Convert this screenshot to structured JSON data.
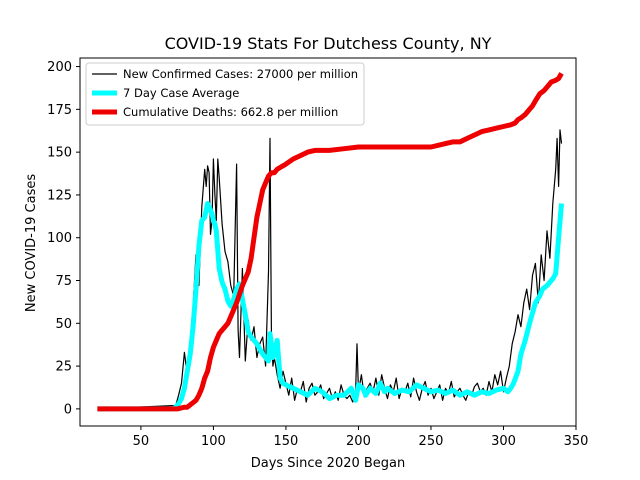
{
  "chart_data": {
    "type": "line",
    "title": "COVID-19 Stats For Dutchess County, NY",
    "xlabel": "Days Since 2020 Began",
    "ylabel": "New COVID-19 Cases",
    "xlim": [
      8,
      350
    ],
    "ylim": [
      -10,
      205
    ],
    "xticks": [
      50,
      100,
      150,
      200,
      250,
      300,
      350
    ],
    "yticks": [
      0,
      25,
      50,
      75,
      100,
      125,
      150,
      175,
      200
    ],
    "grid": false,
    "legend_position": "top-left",
    "series": [
      {
        "name": "New Confirmed Cases: 27000 per million",
        "color": "#000000",
        "x": [
          20,
          74,
          76,
          78,
          80,
          82,
          84,
          86,
          88,
          90,
          92,
          94,
          95,
          96,
          97,
          98,
          99,
          100,
          101,
          102,
          103,
          104,
          106,
          108,
          110,
          112,
          114,
          116,
          117,
          118,
          120,
          122,
          124,
          126,
          128,
          130,
          132,
          134,
          136,
          138,
          139,
          140,
          141,
          142,
          144,
          146,
          148,
          150,
          152,
          154,
          156,
          158,
          160,
          162,
          164,
          166,
          168,
          170,
          172,
          174,
          176,
          178,
          180,
          182,
          184,
          186,
          188,
          190,
          192,
          194,
          196,
          198,
          199,
          200,
          202,
          204,
          206,
          208,
          210,
          212,
          214,
          216,
          218,
          220,
          222,
          224,
          226,
          228,
          230,
          232,
          234,
          236,
          238,
          240,
          242,
          244,
          246,
          248,
          250,
          252,
          254,
          256,
          258,
          260,
          262,
          264,
          266,
          268,
          270,
          272,
          274,
          276,
          278,
          280,
          282,
          284,
          286,
          288,
          290,
          292,
          294,
          296,
          298,
          300,
          302,
          304,
          306,
          308,
          310,
          312,
          314,
          316,
          318,
          320,
          322,
          324,
          326,
          328,
          330,
          332,
          334,
          336,
          337,
          338,
          339,
          340
        ],
        "y": [
          0,
          2,
          8,
          15,
          33,
          20,
          40,
          60,
          90,
          72,
          118,
          140,
          130,
          142,
          138,
          102,
          110,
          146,
          125,
          110,
          146,
          135,
          108,
          92,
          86,
          72,
          66,
          143,
          46,
          30,
          82,
          28,
          52,
          40,
          48,
          30,
          38,
          42,
          25,
          80,
          158,
          45,
          25,
          30,
          20,
          12,
          22,
          15,
          8,
          18,
          5,
          12,
          10,
          16,
          4,
          12,
          15,
          8,
          10,
          14,
          6,
          9,
          12,
          6,
          10,
          5,
          14,
          8,
          6,
          8,
          4,
          10,
          38,
          10,
          20,
          7,
          12,
          15,
          10,
          18,
          8,
          20,
          12,
          6,
          14,
          10,
          18,
          6,
          12,
          10,
          15,
          7,
          18,
          10,
          5,
          12,
          16,
          8,
          12,
          6,
          10,
          14,
          5,
          12,
          9,
          16,
          7,
          10,
          12,
          8,
          5,
          10,
          8,
          13,
          15,
          10,
          12,
          8,
          16,
          10,
          20,
          14,
          22,
          10,
          18,
          25,
          38,
          45,
          55,
          48,
          62,
          70,
          58,
          78,
          85,
          62,
          90,
          75,
          104,
          88,
          120,
          140,
          158,
          130,
          163,
          155
        ]
      },
      {
        "name": "7 Day Case Average",
        "color": "#00ffff",
        "x": [
          20,
          72,
          74,
          76,
          78,
          80,
          82,
          84,
          86,
          88,
          90,
          92,
          94,
          96,
          97,
          98,
          99,
          100,
          101,
          102,
          104,
          106,
          108,
          110,
          112,
          114,
          116,
          118,
          120,
          122,
          124,
          126,
          128,
          130,
          132,
          134,
          136,
          138,
          139,
          140,
          141,
          142,
          144,
          146,
          148,
          150,
          155,
          160,
          165,
          170,
          175,
          180,
          185,
          190,
          195,
          198,
          200,
          203,
          205,
          208,
          212,
          215,
          218,
          220,
          225,
          230,
          235,
          240,
          245,
          250,
          255,
          260,
          265,
          270,
          275,
          280,
          285,
          290,
          295,
          300,
          303,
          305,
          307,
          310,
          312,
          315,
          318,
          320,
          322,
          325,
          327,
          330,
          332,
          334,
          336,
          338,
          340
        ],
        "y": [
          0,
          0,
          1,
          3,
          6,
          12,
          22,
          32,
          48,
          70,
          95,
          110,
          112,
          120,
          118,
          116,
          114,
          110,
          108,
          104,
          82,
          74,
          70,
          63,
          60,
          64,
          70,
          73,
          64,
          55,
          45,
          42,
          40,
          38,
          35,
          32,
          30,
          28,
          44,
          38,
          30,
          32,
          40,
          18,
          15,
          14,
          12,
          10,
          8,
          12,
          10,
          6,
          8,
          8,
          12,
          5,
          14,
          12,
          8,
          12,
          9,
          15,
          10,
          12,
          9,
          11,
          10,
          14,
          12,
          10,
          11,
          9,
          11,
          8,
          10,
          8,
          10,
          9,
          11,
          12,
          10,
          12,
          15,
          22,
          32,
          40,
          50,
          56,
          62,
          66,
          70,
          72,
          74,
          76,
          79,
          100,
          120
        ]
      },
      {
        "name": "Cumulative Deaths: 662.8 per million",
        "color": "#ee0000",
        "x": [
          20,
          70,
          75,
          80,
          82,
          85,
          88,
          90,
          92,
          94,
          96,
          98,
          100,
          102,
          104,
          106,
          108,
          110,
          112,
          114,
          116,
          118,
          120,
          122,
          124,
          126,
          128,
          130,
          132,
          134,
          136,
          138,
          140,
          142,
          144,
          146,
          148,
          150,
          155,
          160,
          165,
          170,
          175,
          180,
          190,
          200,
          210,
          220,
          230,
          240,
          250,
          255,
          260,
          265,
          270,
          275,
          280,
          285,
          290,
          295,
          300,
          305,
          308,
          310,
          312,
          315,
          318,
          320,
          322,
          325,
          328,
          330,
          333,
          336,
          338,
          340
        ],
        "y": [
          0,
          0,
          0,
          1,
          1,
          3,
          5,
          8,
          12,
          18,
          22,
          30,
          36,
          40,
          44,
          46,
          48,
          50,
          54,
          58,
          62,
          67,
          72,
          76,
          80,
          88,
          100,
          112,
          120,
          128,
          132,
          136,
          138,
          138,
          140,
          141,
          142,
          143,
          146,
          148,
          150,
          151,
          151,
          151,
          152,
          153,
          153,
          153,
          153,
          153,
          153,
          154,
          155,
          156,
          156,
          158,
          160,
          162,
          163,
          164,
          165,
          166,
          167,
          169,
          170,
          172,
          175,
          177,
          180,
          184,
          186,
          188,
          191,
          192,
          193,
          196
        ]
      }
    ]
  }
}
